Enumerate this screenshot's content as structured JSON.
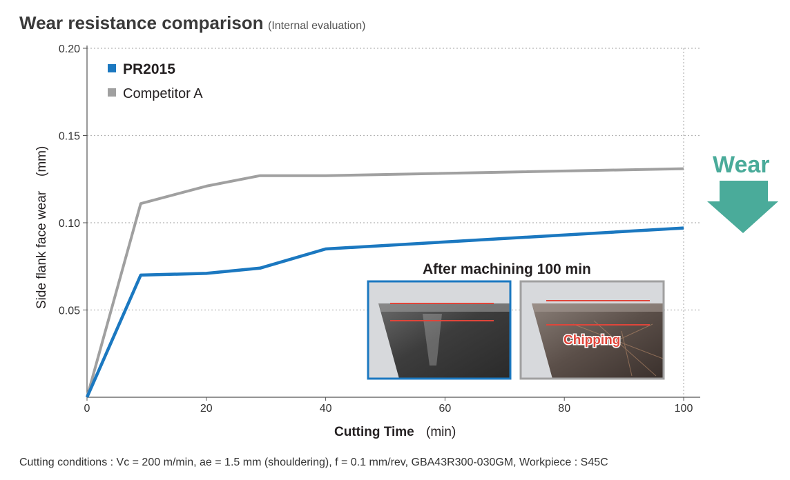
{
  "chart_data": {
    "type": "line",
    "title": "Wear resistance comparison",
    "subtitle": "(Internal evaluation)",
    "xlabel": "Cutting Time",
    "xlabel_unit": "(min)",
    "ylabel": "Side flank face wear",
    "ylabel_unit": "(mm)",
    "xlim": [
      0,
      100
    ],
    "ylim": [
      0,
      0.2
    ],
    "x_ticks": [
      0,
      20,
      40,
      60,
      80,
      100
    ],
    "x_tick_labels": [
      "0",
      "20",
      "40",
      "60",
      "80",
      "100"
    ],
    "y_ticks": [
      0.05,
      0.1,
      0.15,
      0.2
    ],
    "y_tick_labels": [
      "0.05",
      "0.10",
      "0.15",
      "0.20"
    ],
    "grid": "dotted",
    "legend_position": "top-left",
    "series": [
      {
        "name": "PR2015",
        "color": "#1b78c0",
        "points": [
          [
            0,
            0
          ],
          [
            9,
            0.07
          ],
          [
            20,
            0.071
          ],
          [
            29,
            0.074
          ],
          [
            40,
            0.085
          ],
          [
            100,
            0.097
          ]
        ]
      },
      {
        "name": "Competitor A",
        "color": "#a0a0a0",
        "points": [
          [
            0,
            0
          ],
          [
            9,
            0.111
          ],
          [
            20,
            0.121
          ],
          [
            29,
            0.127
          ],
          [
            40,
            0.127
          ],
          [
            100,
            0.131
          ]
        ]
      }
    ],
    "annotation": {
      "wear_label": "Wear",
      "wear_color": "#4aab9a",
      "inset_title": "After machining 100 min",
      "inset_note": "Chipping",
      "inset_frames": [
        {
          "series": "PR2015",
          "border_color": "#1b78c0"
        },
        {
          "series": "Competitor A",
          "border_color": "#a0a0a0"
        }
      ]
    },
    "footnote": "Cutting conditions : Vc = 200 m/min, ae = 1.5 mm (shouldering), f = 0.1 mm/rev, GBA43R300-030GM, Workpiece : S45C"
  }
}
